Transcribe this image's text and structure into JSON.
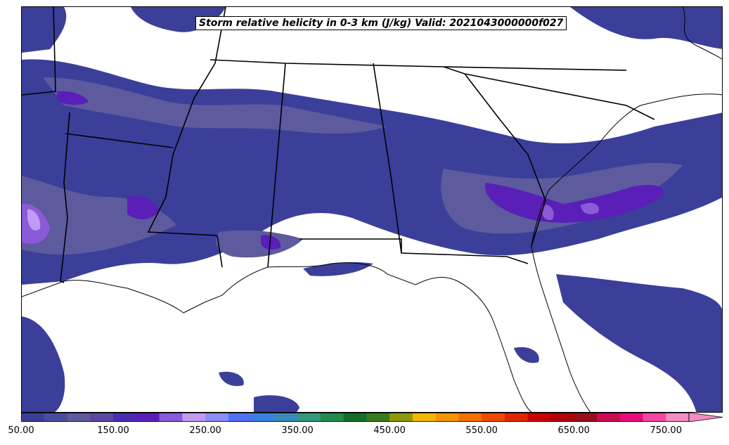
{
  "title": "Storm relative helicity in 0-3 km (J/kg) Valid: 2021043000000f027",
  "colorbar": {
    "colors": [
      "#3b3f9a",
      "#4a4c9c",
      "#5d5a9e",
      "#5b47a2",
      "#4b2bb0",
      "#5a1fb8",
      "#8a5ad8",
      "#c39af2",
      "#8a8ef5",
      "#4e72f2",
      "#3a7ee0",
      "#3a8ab8",
      "#33987c",
      "#248a4c",
      "#126e2a",
      "#3a7a1c",
      "#8c9a0c",
      "#f2b800",
      "#f49400",
      "#f27000",
      "#ee4a00",
      "#e02600",
      "#cc0000",
      "#b00008",
      "#980e1e",
      "#c80c50",
      "#ea0c7c",
      "#f248a0",
      "#f58cc0"
    ],
    "tick_labels": [
      "50.00",
      "150.00",
      "250.00",
      "350.00",
      "450.00",
      "550.00",
      "650.00",
      "750.00"
    ],
    "extend": "max",
    "min": 50,
    "max": 800,
    "step": 25
  },
  "map": {
    "fill_light": "#3b3f9a",
    "fill_mid": "#5d5a9e",
    "fill_strong": "#5a1fb8",
    "fill_peak": "#8a5ad8",
    "fill_extreme": "#c39af2",
    "border_color": "#000000"
  }
}
